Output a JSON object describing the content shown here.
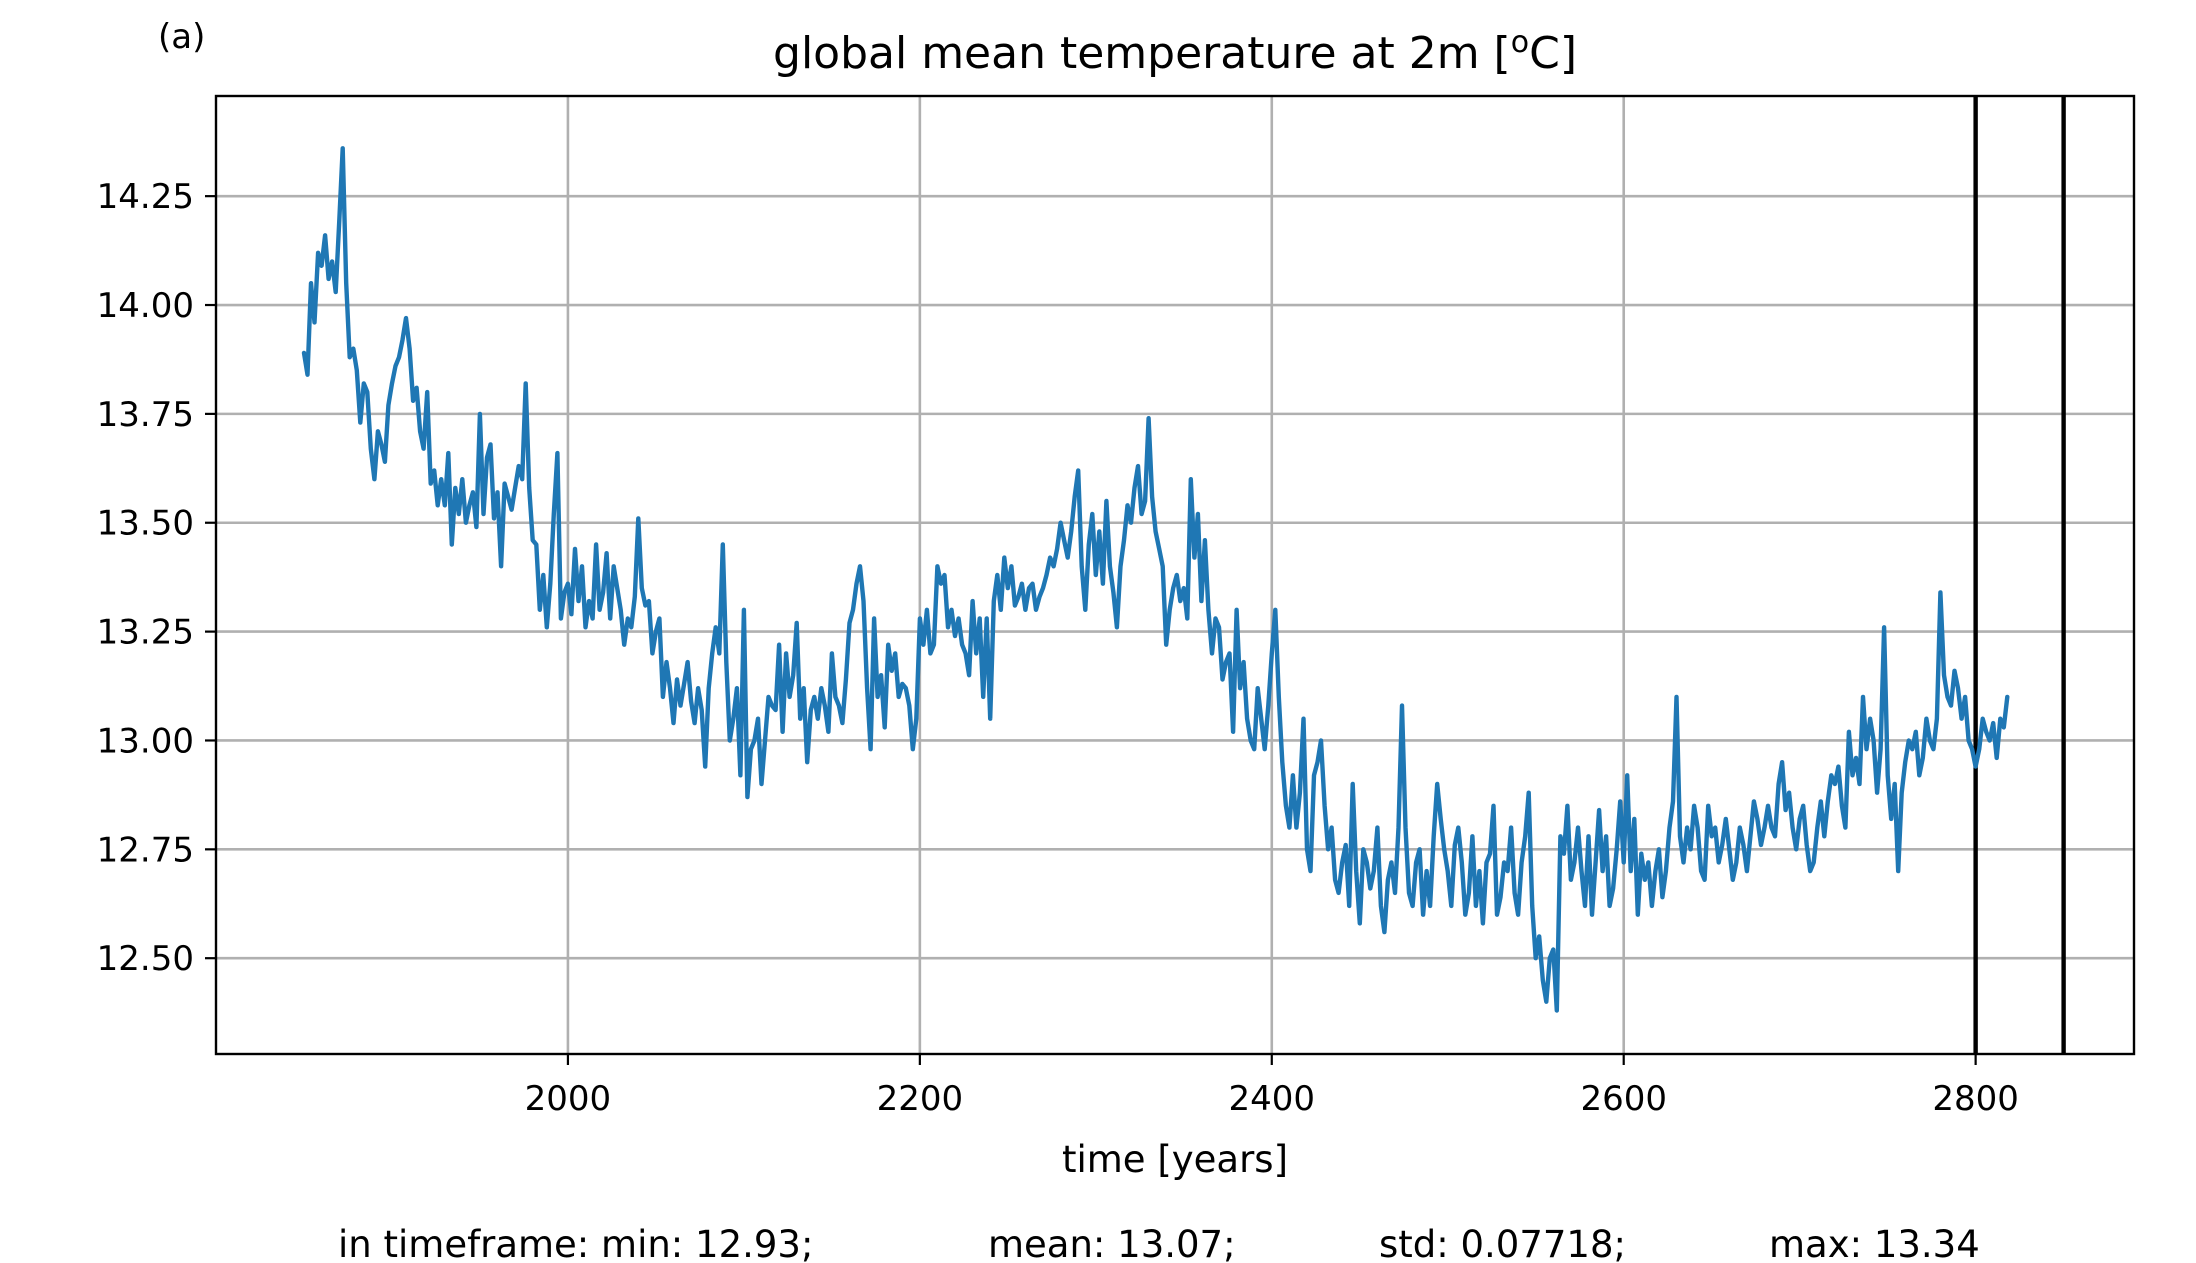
{
  "panel_label": "(a)",
  "stats": {
    "min": "in timeframe: min: 12.93;",
    "mean": "mean: 13.07;",
    "std": "std: 0.07718;",
    "max": "max: 13.34"
  },
  "colors": {
    "series": "#1f77b4",
    "grid": "#b0b0b0",
    "marker_lines": "#000000"
  },
  "chart_data": {
    "type": "line",
    "title": "global mean temperature at 2m [°C]",
    "title_parts": {
      "before": "global mean temperature at 2m [",
      "sup": "o",
      "after": "C]"
    },
    "xlabel": "time [years]",
    "ylabel": "",
    "xlim": [
      1800,
      2890
    ],
    "ylim": [
      12.28,
      14.48
    ],
    "xticks": [
      2000,
      2200,
      2400,
      2600,
      2800
    ],
    "xtick_labels": [
      "2000",
      "2200",
      "2400",
      "2600",
      "2800"
    ],
    "yticks": [
      12.5,
      12.75,
      13.0,
      13.25,
      13.5,
      13.75,
      14.0,
      14.25
    ],
    "ytick_labels": [
      "12.50",
      "12.75",
      "13.00",
      "13.25",
      "13.50",
      "13.75",
      "14.00",
      "14.25"
    ],
    "grid": true,
    "vertical_lines": [
      2800,
      2850
    ],
    "series": [
      {
        "color": "#1f77b4",
        "x_start": 1850,
        "x_step": 2,
        "values": [
          13.89,
          13.84,
          14.05,
          13.96,
          14.12,
          14.09,
          14.16,
          14.06,
          14.1,
          14.03,
          14.19,
          14.36,
          14.05,
          13.88,
          13.9,
          13.85,
          13.73,
          13.82,
          13.8,
          13.67,
          13.6,
          13.71,
          13.68,
          13.64,
          13.77,
          13.82,
          13.86,
          13.88,
          13.92,
          13.97,
          13.9,
          13.78,
          13.81,
          13.71,
          13.67,
          13.8,
          13.59,
          13.62,
          13.54,
          13.6,
          13.54,
          13.66,
          13.45,
          13.58,
          13.52,
          13.6,
          13.5,
          13.54,
          13.57,
          13.49,
          13.75,
          13.52,
          13.65,
          13.68,
          13.51,
          13.57,
          13.4,
          13.59,
          13.56,
          13.53,
          13.58,
          13.63,
          13.6,
          13.82,
          13.58,
          13.46,
          13.45,
          13.3,
          13.38,
          13.26,
          13.36,
          13.52,
          13.66,
          13.28,
          13.34,
          13.36,
          13.29,
          13.44,
          13.32,
          13.4,
          13.26,
          13.32,
          13.28,
          13.45,
          13.3,
          13.34,
          13.43,
          13.28,
          13.4,
          13.35,
          13.3,
          13.22,
          13.28,
          13.26,
          13.33,
          13.51,
          13.35,
          13.31,
          13.32,
          13.2,
          13.25,
          13.28,
          13.1,
          13.18,
          13.12,
          13.04,
          13.14,
          13.08,
          13.13,
          13.18,
          13.09,
          13.04,
          13.12,
          13.07,
          12.94,
          13.12,
          13.2,
          13.26,
          13.2,
          13.45,
          13.18,
          13.0,
          13.05,
          13.12,
          12.92,
          13.3,
          12.87,
          12.98,
          13.0,
          13.05,
          12.9,
          13.0,
          13.1,
          13.08,
          13.07,
          13.22,
          13.02,
          13.2,
          13.1,
          13.15,
          13.27,
          13.05,
          13.12,
          12.95,
          13.07,
          13.1,
          13.05,
          13.12,
          13.08,
          13.02,
          13.2,
          13.1,
          13.08,
          13.04,
          13.14,
          13.27,
          13.3,
          13.36,
          13.4,
          13.32,
          13.12,
          12.98,
          13.28,
          13.1,
          13.15,
          13.03,
          13.22,
          13.16,
          13.2,
          13.1,
          13.13,
          13.12,
          13.08,
          12.98,
          13.05,
          13.28,
          13.22,
          13.3,
          13.2,
          13.22,
          13.4,
          13.36,
          13.38,
          13.26,
          13.3,
          13.24,
          13.28,
          13.22,
          13.2,
          13.15,
          13.32,
          13.2,
          13.28,
          13.1,
          13.28,
          13.05,
          13.32,
          13.38,
          13.3,
          13.42,
          13.35,
          13.4,
          13.31,
          13.33,
          13.36,
          13.3,
          13.35,
          13.36,
          13.3,
          13.33,
          13.35,
          13.38,
          13.42,
          13.4,
          13.44,
          13.5,
          13.46,
          13.42,
          13.48,
          13.56,
          13.62,
          13.4,
          13.3,
          13.45,
          13.52,
          13.38,
          13.48,
          13.36,
          13.55,
          13.4,
          13.34,
          13.26,
          13.4,
          13.46,
          13.54,
          13.5,
          13.58,
          13.63,
          13.52,
          13.55,
          13.74,
          13.56,
          13.48,
          13.44,
          13.4,
          13.22,
          13.3,
          13.35,
          13.38,
          13.32,
          13.35,
          13.28,
          13.6,
          13.42,
          13.52,
          13.32,
          13.46,
          13.3,
          13.2,
          13.28,
          13.26,
          13.14,
          13.18,
          13.2,
          13.02,
          13.3,
          13.12,
          13.18,
          13.05,
          13.0,
          12.98,
          13.12,
          13.05,
          12.98,
          13.08,
          13.2,
          13.3,
          13.1,
          12.95,
          12.85,
          12.8,
          12.92,
          12.8,
          12.88,
          13.05,
          12.75,
          12.7,
          12.92,
          12.95,
          13.0,
          12.85,
          12.75,
          12.8,
          12.68,
          12.65,
          12.72,
          12.76,
          12.62,
          12.9,
          12.7,
          12.58,
          12.75,
          12.72,
          12.66,
          12.7,
          12.8,
          12.62,
          12.56,
          12.68,
          12.72,
          12.65,
          12.8,
          13.08,
          12.8,
          12.65,
          12.62,
          12.72,
          12.75,
          12.6,
          12.7,
          12.62,
          12.78,
          12.9,
          12.82,
          12.75,
          12.7,
          12.62,
          12.76,
          12.8,
          12.72,
          12.6,
          12.65,
          12.78,
          12.62,
          12.7,
          12.58,
          12.72,
          12.74,
          12.85,
          12.6,
          12.64,
          12.72,
          12.7,
          12.8,
          12.65,
          12.6,
          12.72,
          12.78,
          12.88,
          12.62,
          12.5,
          12.55,
          12.45,
          12.4,
          12.5,
          12.52,
          12.38,
          12.78,
          12.74,
          12.85,
          12.68,
          12.72,
          12.8,
          12.7,
          12.62,
          12.78,
          12.6,
          12.72,
          12.84,
          12.7,
          12.78,
          12.62,
          12.66,
          12.75,
          12.86,
          12.72,
          12.92,
          12.7,
          12.82,
          12.6,
          12.74,
          12.68,
          12.72,
          12.62,
          12.7,
          12.75,
          12.64,
          12.7,
          12.8,
          12.86,
          13.1,
          12.78,
          12.72,
          12.8,
          12.75,
          12.85,
          12.8,
          12.7,
          12.68,
          12.85,
          12.78,
          12.8,
          12.72,
          12.76,
          12.82,
          12.75,
          12.68,
          12.72,
          12.8,
          12.76,
          12.7,
          12.78,
          12.86,
          12.82,
          12.76,
          12.8,
          12.85,
          12.8,
          12.78,
          12.9,
          12.95,
          12.84,
          12.88,
          12.8,
          12.75,
          12.82,
          12.85,
          12.76,
          12.7,
          12.72,
          12.8,
          12.86,
          12.78,
          12.86,
          12.92,
          12.9,
          12.94,
          12.85,
          12.8,
          13.02,
          12.92,
          12.96,
          12.9,
          13.1,
          12.98,
          13.05,
          13.0,
          12.88,
          12.98,
          13.26,
          12.92,
          12.82,
          12.9,
          12.7,
          12.88,
          12.95,
          13.0,
          12.98,
          13.02,
          12.92,
          12.96,
          13.05,
          13.0,
          12.98,
          13.05,
          13.34,
          13.15,
          13.1,
          13.08,
          13.16,
          13.12,
          13.05,
          13.1,
          13.0,
          12.98,
          12.94,
          12.98,
          13.05,
          13.02,
          13.0,
          13.04,
          12.96,
          13.05,
          13.03,
          13.1
        ]
      }
    ]
  }
}
